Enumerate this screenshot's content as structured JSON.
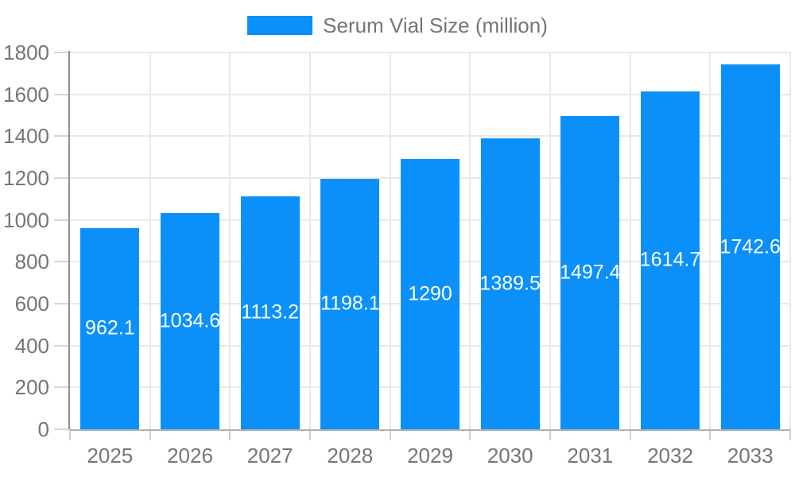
{
  "chart_data": {
    "type": "bar",
    "title": "Serum Vial Size (million)",
    "legend_position": "top",
    "categories": [
      "2025",
      "2026",
      "2027",
      "2028",
      "2029",
      "2030",
      "2031",
      "2032",
      "2033"
    ],
    "series": [
      {
        "name": "Serum Vial Size (million)",
        "color": "#0B90FA",
        "values": [
          962.1,
          1034.6,
          1113.2,
          1198.1,
          1290,
          1389.5,
          1497.4,
          1614.7,
          1742.6
        ]
      }
    ],
    "xlabel": "",
    "ylabel": "",
    "ylim": [
      0,
      1800
    ],
    "y_tick_step": 200,
    "y_ticks": [
      0,
      200,
      400,
      600,
      800,
      1000,
      1200,
      1400,
      1600,
      1800
    ],
    "grid": true,
    "value_labels_inside_bars": true,
    "value_label_color": "#FFFFFF",
    "axis_text_color": "#757575",
    "bar_color": "#0B90FA"
  }
}
